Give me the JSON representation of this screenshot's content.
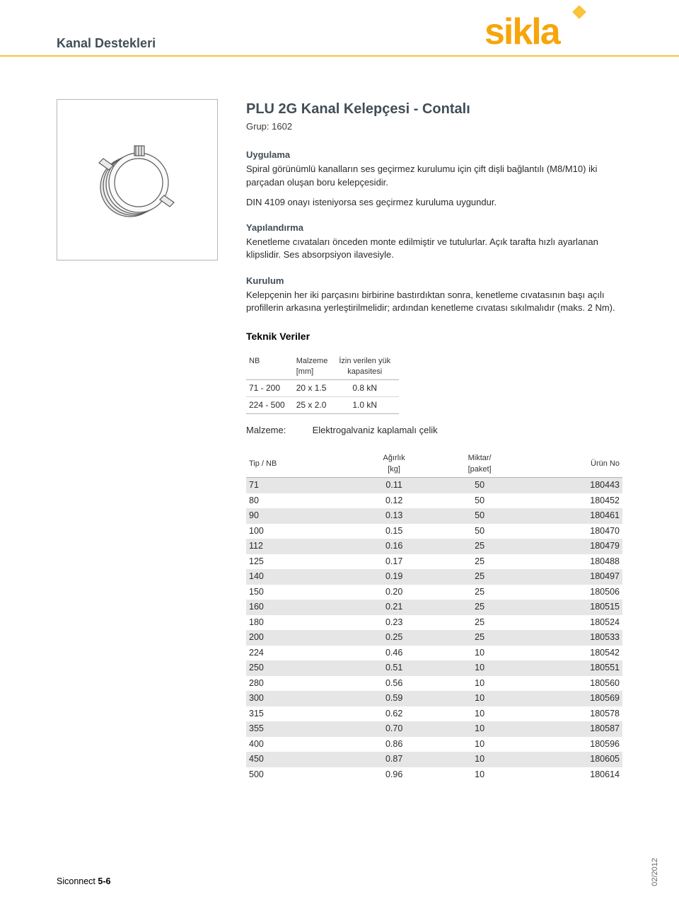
{
  "header": {
    "category": "Kanal Destekleri",
    "logo_text": "sikla",
    "logo_color": "#f6a50a",
    "logo_diamond_color": "#f9c33a",
    "rule_color": "#f9c33a"
  },
  "product": {
    "title": "PLU 2G Kanal Kelepçesi - Contalı",
    "group": "Grup: 1602"
  },
  "sections": {
    "application_heading": "Uygulama",
    "application_text": "Spiral görünümlü kanalların ses geçirmez kurulumu için çift dişli bağlantılı (M8/M10) iki parçadan oluşan boru kelepçesidir.",
    "din_text": "DIN 4109 onayı isteniyorsa ses geçirmez kuruluma uygundur.",
    "config_heading": "Yapılandırma",
    "config_text": "Kenetleme cıvataları önceden monte edilmiştir ve tutulurlar. Açık tarafta hızlı ayarlanan klipslidir. Ses absorpsiyon ilavesiyle.",
    "install_heading": "Kurulum",
    "install_text": "Kelepçenin her iki parçasını birbirine bastırdıktan sonra, kenetleme cıvatasının başı açılı profillerin arkasına yerleştirilmelidir; ardından kenetleme cıvatası sıkılmalıdır (maks. 2 Nm).",
    "tech_heading": "Teknik Veriler",
    "material_label": "Malzeme:",
    "material_value": "Elektrogalvaniz kaplamalı çelik"
  },
  "tech_table": {
    "columns": {
      "nb": "NB",
      "material": "Malzeme",
      "material_unit": "[mm]",
      "load": "İzin verilen yük",
      "load_unit": "kapasitesi"
    },
    "rows": [
      {
        "nb": "71 - 200",
        "material": "20 x 1.5",
        "load": "0.8 kN"
      },
      {
        "nb": "224 - 500",
        "material": "25 x 2.0",
        "load": "1.0 kN"
      }
    ]
  },
  "product_table": {
    "columns": {
      "type": "Tip / NB",
      "weight": "Ağırlık",
      "weight_unit": "[kg]",
      "qty": "Miktar/",
      "qty_unit": "[paket]",
      "part": "Ürün No"
    },
    "rows": [
      {
        "type": "71",
        "weight": "0.11",
        "qty": "50",
        "part": "180443"
      },
      {
        "type": "80",
        "weight": "0.12",
        "qty": "50",
        "part": "180452"
      },
      {
        "type": "90",
        "weight": "0.13",
        "qty": "50",
        "part": "180461"
      },
      {
        "type": "100",
        "weight": "0.15",
        "qty": "50",
        "part": "180470"
      },
      {
        "type": "112",
        "weight": "0.16",
        "qty": "25",
        "part": "180479"
      },
      {
        "type": "125",
        "weight": "0.17",
        "qty": "25",
        "part": "180488"
      },
      {
        "type": "140",
        "weight": "0.19",
        "qty": "25",
        "part": "180497"
      },
      {
        "type": "150",
        "weight": "0.20",
        "qty": "25",
        "part": "180506"
      },
      {
        "type": "160",
        "weight": "0.21",
        "qty": "25",
        "part": "180515"
      },
      {
        "type": "180",
        "weight": "0.23",
        "qty": "25",
        "part": "180524"
      },
      {
        "type": "200",
        "weight": "0.25",
        "qty": "25",
        "part": "180533"
      },
      {
        "type": "224",
        "weight": "0.46",
        "qty": "10",
        "part": "180542"
      },
      {
        "type": "250",
        "weight": "0.51",
        "qty": "10",
        "part": "180551"
      },
      {
        "type": "280",
        "weight": "0.56",
        "qty": "10",
        "part": "180560"
      },
      {
        "type": "300",
        "weight": "0.59",
        "qty": "10",
        "part": "180569"
      },
      {
        "type": "315",
        "weight": "0.62",
        "qty": "10",
        "part": "180578"
      },
      {
        "type": "355",
        "weight": "0.70",
        "qty": "10",
        "part": "180587"
      },
      {
        "type": "400",
        "weight": "0.86",
        "qty": "10",
        "part": "180596"
      },
      {
        "type": "450",
        "weight": "0.87",
        "qty": "10",
        "part": "180605"
      },
      {
        "type": "500",
        "weight": "0.96",
        "qty": "10",
        "part": "180614"
      }
    ]
  },
  "footer": {
    "prefix": "Siconnect ",
    "pages": "5-6",
    "date": "02/2012"
  },
  "image": {
    "stroke": "#5a5a5a",
    "fill": "#d0d0d0"
  },
  "styling": {
    "heading_color": "#414e57",
    "row_stripe": "#e6e6e6",
    "border_color": "#b0b6bb"
  }
}
